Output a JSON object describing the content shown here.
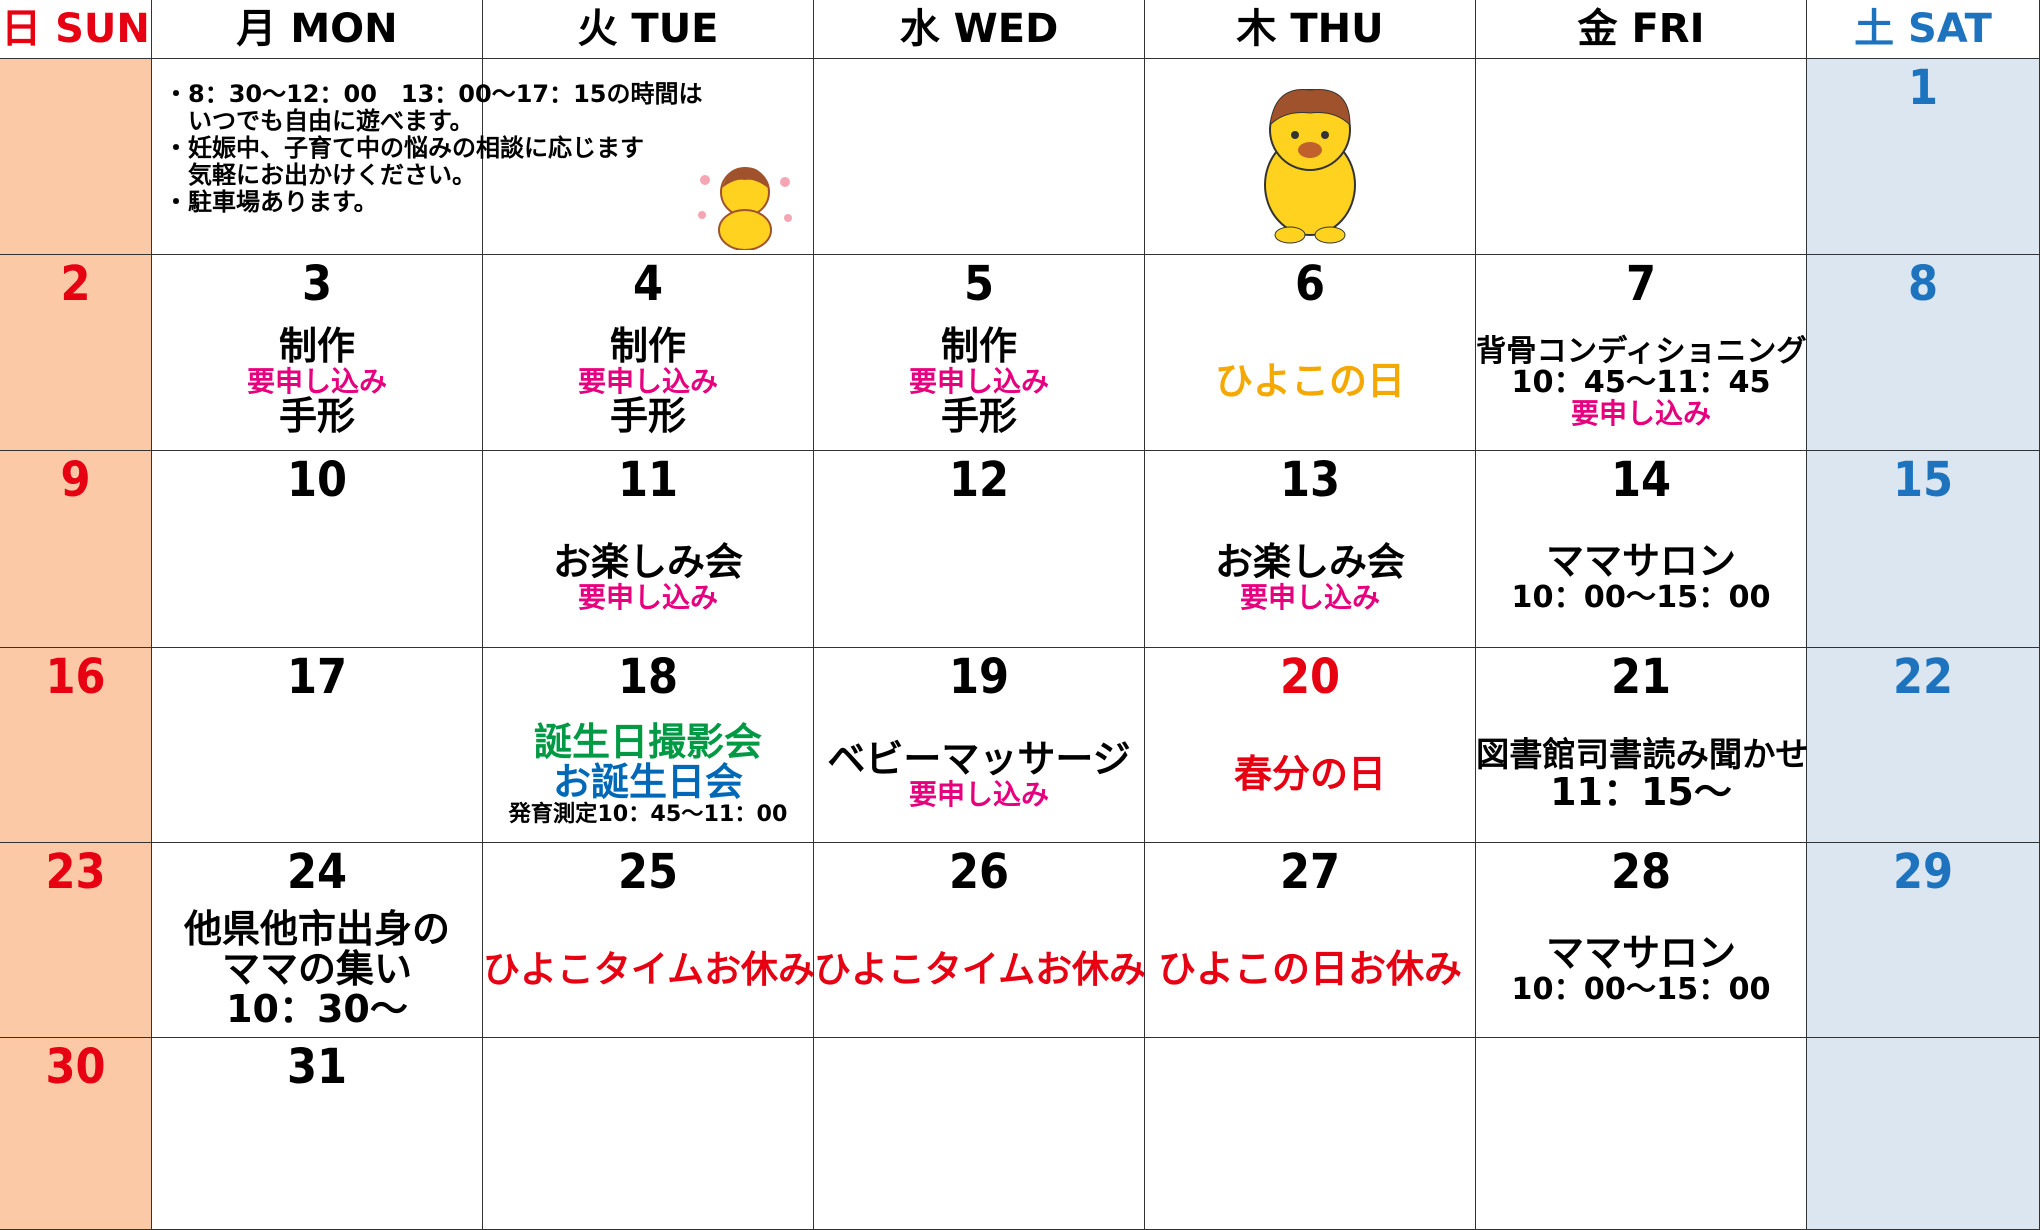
{
  "header": [
    {
      "text": "日 SUN",
      "color": "#e60012"
    },
    {
      "text": "月 MON",
      "color": "#000000"
    },
    {
      "text": "火 TUE",
      "color": "#000000"
    },
    {
      "text": "水 WED",
      "color": "#000000"
    },
    {
      "text": "木 THU",
      "color": "#000000"
    },
    {
      "text": "金 FRI",
      "color": "#000000"
    },
    {
      "text": "土 SAT",
      "color": "#1e73be"
    }
  ],
  "weeks": [
    [
      null,
      {
        "note": [
          "・8：30～12：00　13：00～17：15の時間は",
          "　いつでも自由に遊べます。",
          "・妊娠中、子育て中の悩みの相談に応じます",
          "　気軽にお出かけください。",
          "・駐車場あります。"
        ]
      },
      null,
      null,
      null,
      null,
      {
        "day": 1
      }
    ],
    [
      {
        "day": 2
      },
      {
        "day": 3,
        "lines": [
          {
            "text": "制作",
            "color": "#000000"
          },
          {
            "text": "要申し込み",
            "color": "#e6007e"
          },
          {
            "text": "手形",
            "color": "#000000"
          }
        ]
      },
      {
        "day": 4,
        "lines": [
          {
            "text": "制作",
            "color": "#000000"
          },
          {
            "text": "要申し込み",
            "color": "#e6007e"
          },
          {
            "text": "手形",
            "color": "#000000"
          }
        ]
      },
      {
        "day": 5,
        "lines": [
          {
            "text": "制作",
            "color": "#000000"
          },
          {
            "text": "要申し込み",
            "color": "#e6007e"
          },
          {
            "text": "手形",
            "color": "#000000"
          }
        ]
      },
      {
        "day": 6,
        "lines": [
          {
            "text": "ひよこの日",
            "color": "#f5a800"
          }
        ]
      },
      {
        "day": 7,
        "lines": [
          {
            "text": "背骨コンディショニング",
            "color": "#000000"
          },
          {
            "text": "10：45～11：45",
            "color": "#000000"
          },
          {
            "text": "要申し込み",
            "color": "#e6007e"
          }
        ]
      },
      {
        "day": 8
      }
    ],
    [
      {
        "day": 9
      },
      {
        "day": 10
      },
      {
        "day": 11,
        "lines": [
          {
            "text": "お楽しみ会",
            "color": "#000000"
          },
          {
            "text": "要申し込み",
            "color": "#e6007e"
          }
        ]
      },
      {
        "day": 12
      },
      {
        "day": 13,
        "lines": [
          {
            "text": "お楽しみ会",
            "color": "#000000"
          },
          {
            "text": "要申し込み",
            "color": "#e6007e"
          }
        ]
      },
      {
        "day": 14,
        "lines": [
          {
            "text": "ママサロン",
            "color": "#000000"
          },
          {
            "text": "10：00～15：00",
            "color": "#000000"
          }
        ]
      },
      {
        "day": 15
      }
    ],
    [
      {
        "day": 16
      },
      {
        "day": 17
      },
      {
        "day": 18,
        "lines": [
          {
            "text": "誕生日撮影会",
            "color": "#009944"
          },
          {
            "text": "お誕生日会",
            "color": "#0068b7"
          },
          {
            "text": "発育測定10：45～11：00",
            "color": "#000000"
          }
        ]
      },
      {
        "day": 19,
        "lines": [
          {
            "text": "ベビーマッサージ",
            "color": "#000000"
          },
          {
            "text": "要申し込み",
            "color": "#e6007e"
          }
        ]
      },
      {
        "day": 20,
        "day_color": "#e60012",
        "lines": [
          {
            "text": "春分の日",
            "color": "#e60012"
          }
        ]
      },
      {
        "day": 21,
        "lines": [
          {
            "text": "図書館司書読み聞かせ",
            "color": "#000000"
          },
          {
            "text": "11：15～",
            "color": "#000000"
          }
        ]
      },
      {
        "day": 22
      }
    ],
    [
      {
        "day": 23
      },
      {
        "day": 24,
        "lines": [
          {
            "text": "他県他市出身の",
            "color": "#000000"
          },
          {
            "text": "ママの集い",
            "color": "#000000"
          },
          {
            "text": "10：30～",
            "color": "#000000"
          }
        ]
      },
      {
        "day": 25,
        "lines": [
          {
            "text": "ひよこタイムお休み",
            "color": "#e60012"
          }
        ]
      },
      {
        "day": 26,
        "lines": [
          {
            "text": "ひよこタイムお休み",
            "color": "#e60012"
          }
        ]
      },
      {
        "day": 27,
        "lines": [
          {
            "text": "ひよこの日お休み",
            "color": "#e60012"
          }
        ]
      },
      {
        "day": 28,
        "lines": [
          {
            "text": "ママサロン",
            "color": "#000000"
          },
          {
            "text": "10：00～15：00",
            "color": "#000000"
          }
        ]
      },
      {
        "day": 29
      }
    ],
    [
      {
        "day": 30
      },
      {
        "day": 31
      },
      null,
      null,
      null,
      null,
      null
    ]
  ]
}
